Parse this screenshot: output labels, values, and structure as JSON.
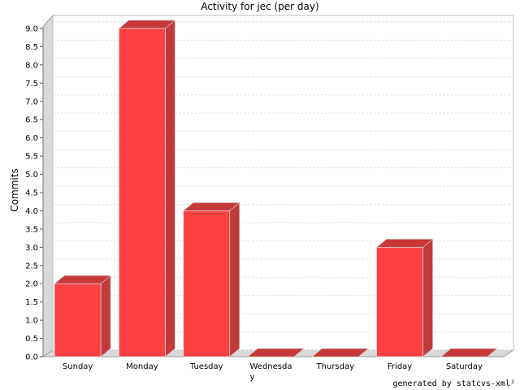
{
  "chart_data": {
    "type": "bar",
    "title": "Activity for jec (per day)",
    "xlabel": "",
    "ylabel": "Commits",
    "categories": [
      "Sunday",
      "Monday",
      "Tuesday",
      "Wednesday",
      "Thursday",
      "Friday",
      "Saturday"
    ],
    "category_display_lines": [
      [
        "Sunday"
      ],
      [
        "Monday"
      ],
      [
        "Tuesday"
      ],
      [
        "Wednesda",
        "y"
      ],
      [
        "Thursday"
      ],
      [
        "Friday"
      ],
      [
        "Saturday"
      ]
    ],
    "values": [
      2,
      9,
      4,
      0,
      0,
      3,
      0
    ],
    "ylim": [
      0,
      9.0
    ],
    "yticks": [
      "0.0",
      "0.5",
      "1.0",
      "1.5",
      "2.0",
      "2.5",
      "3.0",
      "3.5",
      "4.0",
      "4.5",
      "5.0",
      "5.5",
      "6.0",
      "6.5",
      "7.0",
      "7.5",
      "8.0",
      "8.5",
      "9.0"
    ],
    "grid": true,
    "legend": "none",
    "colors": {
      "bar_front": "#ff4040",
      "bar_top": "#c83838",
      "bar_side": "#c23a3a",
      "wall": "#d8d8d8",
      "grid": "#e0e0e0"
    }
  },
  "footer": "generated by statcvs-xml²"
}
